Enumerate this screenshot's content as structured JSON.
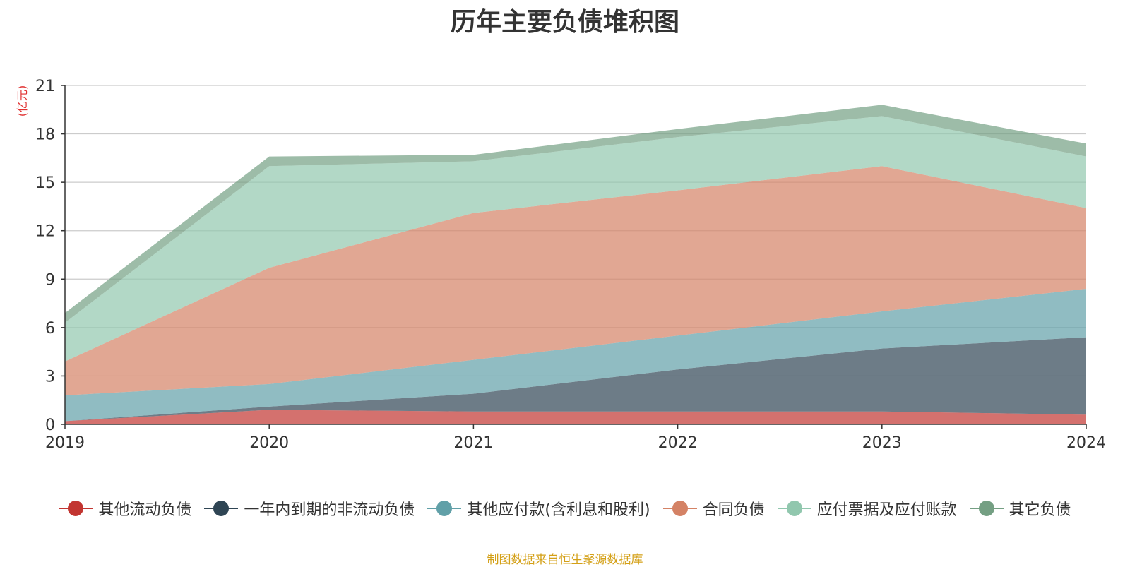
{
  "chart_data": {
    "type": "area",
    "stacked": true,
    "title": "历年主要负债堆积图",
    "ylabel": "(亿元)",
    "xlabel": "",
    "categories": [
      "2019",
      "2020",
      "2021",
      "2022",
      "2023",
      "2024"
    ],
    "ylim": [
      0,
      21
    ],
    "yticks": [
      0,
      3,
      6,
      9,
      12,
      15,
      18,
      21
    ],
    "grid": true,
    "legend_position": "bottom",
    "series": [
      {
        "name": "其他流动负债",
        "color": "#c23531",
        "values": [
          0.2,
          0.9,
          0.8,
          0.8,
          0.8,
          0.6
        ]
      },
      {
        "name": "一年内到期的非流动负债",
        "color": "#2f4554",
        "values": [
          0.0,
          0.2,
          1.1,
          2.6,
          3.9,
          4.8
        ]
      },
      {
        "name": "其他应付款(含利息和股利)",
        "color": "#61a0a8",
        "values": [
          1.6,
          1.4,
          2.1,
          2.1,
          2.3,
          3.0
        ]
      },
      {
        "name": "合同负债",
        "color": "#d48265",
        "values": [
          2.1,
          7.2,
          9.1,
          9.0,
          9.0,
          5.0
        ]
      },
      {
        "name": "应付票据及应付账款",
        "color": "#91c7ae",
        "values": [
          2.4,
          6.3,
          3.2,
          3.3,
          3.1,
          3.2
        ]
      },
      {
        "name": "其它负债",
        "color": "#749f83",
        "values": [
          0.6,
          0.6,
          0.4,
          0.5,
          0.7,
          0.8
        ]
      }
    ]
  },
  "footer": {
    "source": "制图数据来自恒生聚源数据库"
  }
}
